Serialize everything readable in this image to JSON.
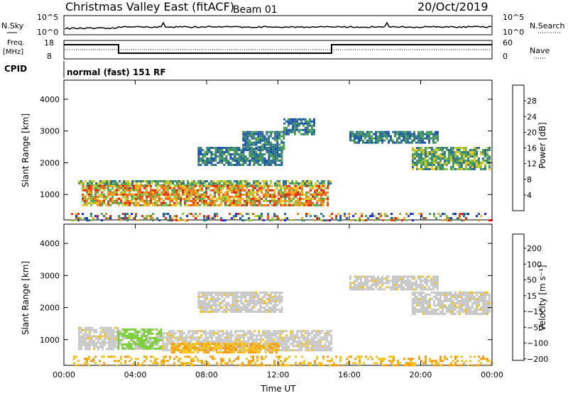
{
  "header": {
    "title": "Christmas Valley East (fitACF)",
    "beam": "Beam 01",
    "date": "20/Oct/2019"
  },
  "strip": {
    "nsky_label": "N.Sky",
    "nsky_ticks": [
      "10^5",
      "10^0"
    ],
    "nsearch_label": "N.Search",
    "freq_label_1": "Freq.",
    "freq_label_2": "[MHz]",
    "freq_ticks": [
      "18",
      "8"
    ],
    "nave_ticks": [
      "60",
      "0"
    ],
    "nave_label": "Nave",
    "cpid_label": "CPID",
    "cpid_text": "normal (fast) 151 RF"
  },
  "chart_data": [
    {
      "type": "heatmap",
      "panel": "power",
      "ylabel": "Slant Range [km]",
      "ylim": [
        200,
        4600
      ],
      "xlim": [
        0,
        24
      ],
      "yticks": [
        "1000",
        "2000",
        "3000",
        "4000"
      ],
      "x_tick_values": [
        0,
        4,
        8,
        12,
        16,
        20,
        24
      ],
      "colorbar": {
        "label": "Power [dB]",
        "tick_labels": [
          "4",
          "8",
          "12",
          "16",
          "20",
          "24",
          "28"
        ],
        "colors": [
          "#1020e0",
          "#1a4fb0",
          "#2a6a95",
          "#3b8a72",
          "#4aa24e",
          "#8fc23c",
          "#e8c81e",
          "#f5a312",
          "#f07a0c",
          "#ea4a0a",
          "#e01a08"
        ]
      },
      "regions": [
        {
          "t0": 0.8,
          "t1": 15.0,
          "r0": 1300,
          "r1": 1450,
          "level": "medium"
        },
        {
          "t0": 1.0,
          "t1": 14.8,
          "r0": 650,
          "r1": 1300,
          "level": "high"
        },
        {
          "t0": 7.5,
          "t1": 12.2,
          "r0": 1900,
          "r1": 2500,
          "level": "low"
        },
        {
          "t0": 10.0,
          "t1": 12.3,
          "r0": 2400,
          "r1": 3000,
          "level": "low"
        },
        {
          "t0": 12.3,
          "t1": 14.0,
          "r0": 2900,
          "r1": 3400,
          "level": "low"
        },
        {
          "t0": 16.0,
          "t1": 21.0,
          "r0": 2600,
          "r1": 3000,
          "level": "low"
        },
        {
          "t0": 19.5,
          "t1": 23.8,
          "r0": 1800,
          "r1": 2500,
          "level": "medium"
        },
        {
          "t0": 0.4,
          "t1": 24.0,
          "r0": 200,
          "r1": 420,
          "level": "mixed"
        }
      ]
    },
    {
      "type": "heatmap",
      "panel": "velocity",
      "ylabel": "Slant Range [km]",
      "xlabel": "Time UT",
      "ylim": [
        200,
        4600
      ],
      "xlim": [
        0,
        24
      ],
      "yticks": [
        "1000",
        "2000",
        "3000",
        "4000"
      ],
      "x_tick_values": [
        0,
        4,
        8,
        12,
        16,
        20,
        24
      ],
      "x_tick_labels": [
        "00:00",
        "04:00",
        "08:00",
        "12:00",
        "16:00",
        "20:00",
        "00:00"
      ],
      "colorbar": {
        "label": "Velocity [m s⁻¹]",
        "tick_labels": [
          "200",
          "100",
          "50",
          "15",
          "−15",
          "−50",
          "−100",
          "−200"
        ],
        "colors": [
          "#2030c0",
          "#2e5a9e",
          "#3d7c6c",
          "#3e9a48",
          "#7ccf3a",
          "#c8c8c8",
          "#c8c8c8",
          "#f2c21a",
          "#f59a10",
          "#ee6a0c",
          "#e01a08"
        ]
      },
      "regions": [
        {
          "t0": 0.8,
          "t1": 3.0,
          "r0": 700,
          "r1": 1400,
          "color": "grey"
        },
        {
          "t0": 3.0,
          "t1": 5.5,
          "r0": 700,
          "r1": 1350,
          "color": "green"
        },
        {
          "t0": 5.5,
          "t1": 15.0,
          "r0": 700,
          "r1": 1300,
          "color": "grey"
        },
        {
          "t0": 6.0,
          "t1": 12.0,
          "r0": 600,
          "r1": 900,
          "color": "yellow"
        },
        {
          "t0": 7.5,
          "t1": 12.2,
          "r0": 1900,
          "r1": 2500,
          "color": "grey"
        },
        {
          "t0": 16.0,
          "t1": 21.0,
          "r0": 2600,
          "r1": 3000,
          "color": "grey"
        },
        {
          "t0": 19.5,
          "t1": 23.8,
          "r0": 1800,
          "r1": 2500,
          "color": "grey"
        },
        {
          "t0": 0.4,
          "t1": 24.0,
          "r0": 200,
          "r1": 500,
          "color": "yellow"
        }
      ]
    }
  ]
}
